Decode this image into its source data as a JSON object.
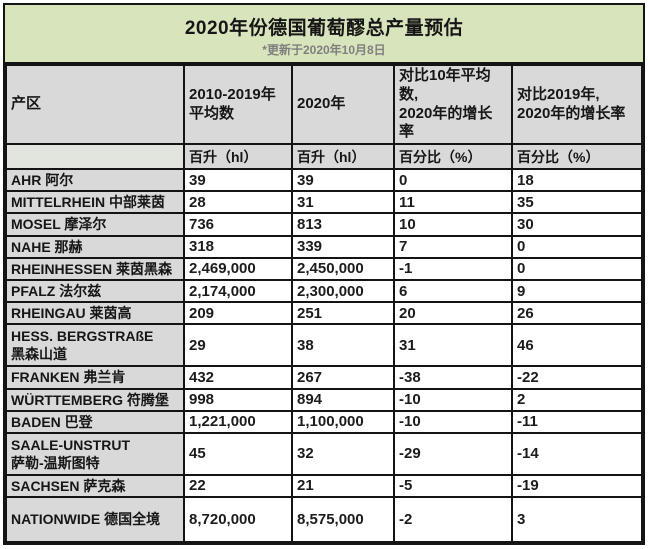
{
  "chart_data": {
    "type": "table",
    "title": "2020年份德国葡萄醪总产量预估",
    "subtitle": "*更新于2020年10月8日",
    "columns": {
      "region": "产区",
      "avg_line1": "2010-2019年",
      "avg_line2": "平均数",
      "y2020": "2020年",
      "vs_avg_line1": "对比10年平均数,",
      "vs_avg_line2": "2020年的增长率",
      "vs_2019_line1": "对比2019年,",
      "vs_2019_line2": "2020年的增长率"
    },
    "units": {
      "avg": "百升（hl）",
      "y2020": "百升（hl）",
      "vs_avg": "百分比（%）",
      "vs_2019": "百分比（%）"
    },
    "rows": [
      {
        "region": "AHR 阿尔",
        "avg": "39",
        "y2020": "39",
        "vs_avg": "0",
        "vs_2019": "18"
      },
      {
        "region": "MITTELRHEIN 中部莱茵",
        "avg": "28",
        "y2020": "31",
        "vs_avg": "11",
        "vs_2019": "35"
      },
      {
        "region": "MOSEL 摩泽尔",
        "avg": "736",
        "y2020": "813",
        "vs_avg": "10",
        "vs_2019": "30"
      },
      {
        "region": "NAHE 那赫",
        "avg": "318",
        "y2020": "339",
        "vs_avg": "7",
        "vs_2019": "0"
      },
      {
        "region": "RHEINHESSEN 莱茵黑森",
        "avg": "2,469,000",
        "y2020": "2,450,000",
        "vs_avg": "-1",
        "vs_2019": "0"
      },
      {
        "region": "PFALZ 法尔兹",
        "avg": "2,174,000",
        "y2020": "2,300,000",
        "vs_avg": "6",
        "vs_2019": "9"
      },
      {
        "region": "RHEINGAU 莱茵高",
        "avg": "209",
        "y2020": "251",
        "vs_avg": "20",
        "vs_2019": "26"
      },
      {
        "region": "HESS. BERGSTRAßE\n黑森山道",
        "avg": "29",
        "y2020": "38",
        "vs_avg": "31",
        "vs_2019": "46"
      },
      {
        "region": "FRANKEN 弗兰肯",
        "avg": "432",
        "y2020": "267",
        "vs_avg": "-38",
        "vs_2019": "-22"
      },
      {
        "region": "WÜRTTEMBERG 符腾堡",
        "avg": "998",
        "y2020": "894",
        "vs_avg": "-10",
        "vs_2019": "2"
      },
      {
        "region": "BADEN 巴登",
        "avg": "1,221,000",
        "y2020": "1,100,000",
        "vs_avg": "-10",
        "vs_2019": "-11"
      },
      {
        "region": "SAALE-UNSTRUT\n萨勒-温斯图特",
        "avg": "45",
        "y2020": "32",
        "vs_avg": "-29",
        "vs_2019": "-14"
      },
      {
        "region": "SACHSEN 萨克森",
        "avg": "22",
        "y2020": "21",
        "vs_avg": "-5",
        "vs_2019": "-19"
      },
      {
        "region": "NATIONWIDE 德国全境",
        "avg": "8,720,000",
        "y2020": "8,575,000",
        "vs_avg": "-2",
        "vs_2019": "3"
      }
    ],
    "layout": {
      "title_band_color": "#d8e4bc",
      "header_fill_color": "#d9d9d9",
      "border_color": "#141414",
      "subtitle_color": "#7f7f7f"
    }
  }
}
